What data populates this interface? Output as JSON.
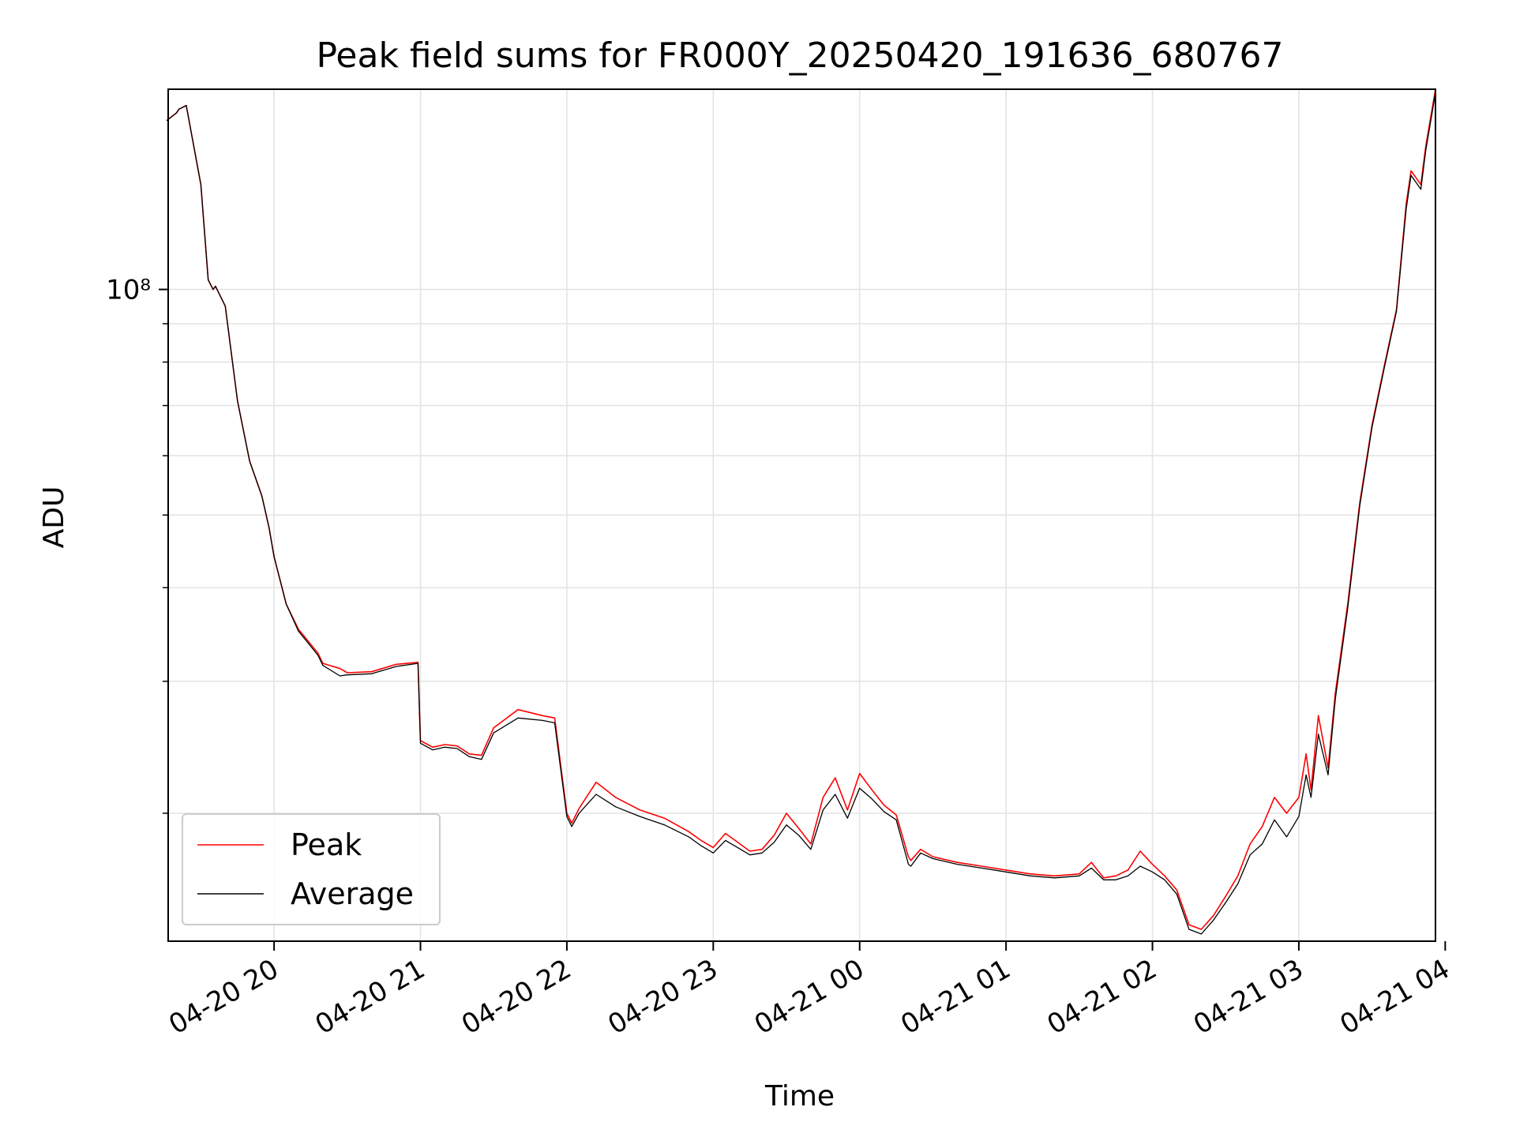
{
  "chart_data": {
    "type": "line",
    "title": "Peak field sums for FR000Y_20250420_191636_680767",
    "xlabel": "Time",
    "ylabel": "ADU",
    "y_scale": "log",
    "xlim": [
      "2025-04-20 19:16:36",
      "2025-04-21 03:56:00"
    ],
    "ylim": [
      13500000,
      185000000
    ],
    "x_tick_labels": [
      "04-20 20",
      "04-20 21",
      "04-20 22",
      "04-20 23",
      "04-21 00",
      "04-21 01",
      "04-21 02",
      "04-21 03",
      "04-21 04"
    ],
    "x_ticks": [
      "2025-04-20 20:00",
      "2025-04-20 21:00",
      "2025-04-20 22:00",
      "2025-04-20 23:00",
      "2025-04-21 00:00",
      "2025-04-21 01:00",
      "2025-04-21 02:00",
      "2025-04-21 03:00",
      "2025-04-21 04:00"
    ],
    "y_tick_label": "10⁸",
    "y_tick_value": 100000000,
    "grid": true,
    "legend_position": "lower-left",
    "series": [
      {
        "name": "Peak",
        "color": "#ff0000",
        "x": [
          "2025-04-20 19:16",
          "2025-04-20 19:20",
          "2025-04-20 19:21",
          "2025-04-20 19:24",
          "2025-04-20 19:30",
          "2025-04-20 19:33",
          "2025-04-20 19:35",
          "2025-04-20 19:36",
          "2025-04-20 19:40",
          "2025-04-20 19:45",
          "2025-04-20 19:50",
          "2025-04-20 19:55",
          "2025-04-20 19:58",
          "2025-04-20 20:00",
          "2025-04-20 20:05",
          "2025-04-20 20:10",
          "2025-04-20 20:18",
          "2025-04-20 20:20",
          "2025-04-20 20:27",
          "2025-04-20 20:30",
          "2025-04-20 20:40",
          "2025-04-20 20:50",
          "2025-04-20 20:59",
          "2025-04-20 21:00",
          "2025-04-20 21:05",
          "2025-04-20 21:10",
          "2025-04-20 21:15",
          "2025-04-20 21:20",
          "2025-04-20 21:25",
          "2025-04-20 21:30",
          "2025-04-20 21:40",
          "2025-04-20 21:50",
          "2025-04-20 21:55",
          "2025-04-20 22:00",
          "2025-04-20 22:02",
          "2025-04-20 22:05",
          "2025-04-20 22:12",
          "2025-04-20 22:20",
          "2025-04-20 22:30",
          "2025-04-20 22:40",
          "2025-04-20 22:50",
          "2025-04-20 22:55",
          "2025-04-20 23:00",
          "2025-04-20 23:05",
          "2025-04-20 23:10",
          "2025-04-20 23:15",
          "2025-04-20 23:20",
          "2025-04-20 23:25",
          "2025-04-20 23:30",
          "2025-04-20 23:35",
          "2025-04-20 23:40",
          "2025-04-20 23:45",
          "2025-04-20 23:50",
          "2025-04-20 23:55",
          "2025-04-21 00:00",
          "2025-04-21 00:05",
          "2025-04-21 00:10",
          "2025-04-21 00:15",
          "2025-04-21 00:20",
          "2025-04-21 00:21",
          "2025-04-21 00:25",
          "2025-04-21 00:30",
          "2025-04-21 00:40",
          "2025-04-21 00:50",
          "2025-04-21 01:00",
          "2025-04-21 01:10",
          "2025-04-21 01:20",
          "2025-04-21 01:30",
          "2025-04-21 01:35",
          "2025-04-21 01:40",
          "2025-04-21 01:45",
          "2025-04-21 01:50",
          "2025-04-21 01:55",
          "2025-04-21 02:00",
          "2025-04-21 02:05",
          "2025-04-21 02:10",
          "2025-04-21 02:15",
          "2025-04-21 02:20",
          "2025-04-21 02:25",
          "2025-04-21 02:30",
          "2025-04-21 02:35",
          "2025-04-21 02:40",
          "2025-04-21 02:45",
          "2025-04-21 02:50",
          "2025-04-21 02:55",
          "2025-04-21 03:00",
          "2025-04-21 03:03",
          "2025-04-21 03:05",
          "2025-04-21 03:08",
          "2025-04-21 03:12",
          "2025-04-21 03:15",
          "2025-04-21 03:20",
          "2025-04-21 03:25",
          "2025-04-21 03:30",
          "2025-04-21 03:35",
          "2025-04-21 03:40",
          "2025-04-21 03:44",
          "2025-04-21 03:46",
          "2025-04-21 03:50",
          "2025-04-21 03:52",
          "2025-04-21 03:56"
        ],
        "y": [
          168000000,
          172000000,
          174000000,
          176000000,
          138000000,
          103000000,
          100000000,
          101000000,
          95000000,
          71000000,
          59000000,
          53000000,
          48000000,
          44000000,
          38000000,
          35200000,
          32700000,
          31700000,
          31200000,
          30800000,
          30900000,
          31600000,
          31800000,
          25000000,
          24500000,
          24700000,
          24600000,
          24000000,
          23900000,
          26000000,
          27500000,
          27000000,
          26800000,
          20000000,
          19400000,
          20300000,
          22000000,
          21000000,
          20200000,
          19700000,
          18900000,
          18400000,
          18000000,
          18800000,
          18300000,
          17800000,
          17900000,
          18700000,
          20000000,
          19100000,
          18200000,
          21000000,
          22300000,
          20200000,
          22600000,
          21500000,
          20500000,
          19900000,
          17500000,
          17300000,
          17900000,
          17500000,
          17200000,
          17000000,
          16800000,
          16600000,
          16500000,
          16600000,
          17200000,
          16400000,
          16500000,
          16800000,
          17800000,
          17100000,
          16500000,
          15800000,
          14200000,
          14000000,
          14600000,
          15500000,
          16500000,
          18200000,
          19200000,
          21000000,
          20000000,
          21000000,
          24000000,
          21500000,
          27000000,
          23000000,
          29000000,
          38000000,
          52000000,
          66000000,
          79000000,
          94000000,
          130000000,
          144000000,
          138000000,
          155000000,
          185000000
        ]
      },
      {
        "name": "Average",
        "color": "#000000",
        "x": [
          "2025-04-20 19:16",
          "2025-04-20 19:20",
          "2025-04-20 19:21",
          "2025-04-20 19:24",
          "2025-04-20 19:30",
          "2025-04-20 19:33",
          "2025-04-20 19:35",
          "2025-04-20 19:36",
          "2025-04-20 19:40",
          "2025-04-20 19:45",
          "2025-04-20 19:50",
          "2025-04-20 19:55",
          "2025-04-20 19:58",
          "2025-04-20 20:00",
          "2025-04-20 20:05",
          "2025-04-20 20:10",
          "2025-04-20 20:18",
          "2025-04-20 20:20",
          "2025-04-20 20:27",
          "2025-04-20 20:30",
          "2025-04-20 20:40",
          "2025-04-20 20:50",
          "2025-04-20 20:59",
          "2025-04-20 21:00",
          "2025-04-20 21:05",
          "2025-04-20 21:10",
          "2025-04-20 21:15",
          "2025-04-20 21:20",
          "2025-04-20 21:25",
          "2025-04-20 21:30",
          "2025-04-20 21:40",
          "2025-04-20 21:50",
          "2025-04-20 21:55",
          "2025-04-20 22:00",
          "2025-04-20 22:02",
          "2025-04-20 22:05",
          "2025-04-20 22:12",
          "2025-04-20 22:20",
          "2025-04-20 22:30",
          "2025-04-20 22:40",
          "2025-04-20 22:50",
          "2025-04-20 22:55",
          "2025-04-20 23:00",
          "2025-04-20 23:05",
          "2025-04-20 23:10",
          "2025-04-20 23:15",
          "2025-04-20 23:20",
          "2025-04-20 23:25",
          "2025-04-20 23:30",
          "2025-04-20 23:35",
          "2025-04-20 23:40",
          "2025-04-20 23:45",
          "2025-04-20 23:50",
          "2025-04-20 23:55",
          "2025-04-21 00:00",
          "2025-04-21 00:05",
          "2025-04-21 00:10",
          "2025-04-21 00:15",
          "2025-04-21 00:20",
          "2025-04-21 00:21",
          "2025-04-21 00:25",
          "2025-04-21 00:30",
          "2025-04-21 00:40",
          "2025-04-21 00:50",
          "2025-04-21 01:00",
          "2025-04-21 01:10",
          "2025-04-21 01:20",
          "2025-04-21 01:30",
          "2025-04-21 01:35",
          "2025-04-21 01:40",
          "2025-04-21 01:45",
          "2025-04-21 01:50",
          "2025-04-21 01:55",
          "2025-04-21 02:00",
          "2025-04-21 02:05",
          "2025-04-21 02:10",
          "2025-04-21 02:15",
          "2025-04-21 02:20",
          "2025-04-21 02:25",
          "2025-04-21 02:30",
          "2025-04-21 02:35",
          "2025-04-21 02:40",
          "2025-04-21 02:45",
          "2025-04-21 02:50",
          "2025-04-21 02:55",
          "2025-04-21 03:00",
          "2025-04-21 03:03",
          "2025-04-21 03:05",
          "2025-04-21 03:08",
          "2025-04-21 03:12",
          "2025-04-21 03:15",
          "2025-04-21 03:20",
          "2025-04-21 03:25",
          "2025-04-21 03:30",
          "2025-04-21 03:35",
          "2025-04-21 03:40",
          "2025-04-21 03:44",
          "2025-04-21 03:46",
          "2025-04-21 03:50",
          "2025-04-21 03:52",
          "2025-04-21 03:56"
        ],
        "y": [
          168000000,
          172000000,
          174000000,
          176000000,
          138000000,
          103000000,
          100000000,
          101000000,
          95000000,
          71000000,
          59000000,
          53000000,
          48000000,
          44000000,
          38000000,
          35000000,
          32500000,
          31500000,
          30500000,
          30600000,
          30700000,
          31400000,
          31700000,
          24800000,
          24300000,
          24500000,
          24400000,
          23800000,
          23600000,
          25600000,
          26800000,
          26600000,
          26400000,
          19800000,
          19200000,
          20000000,
          21200000,
          20400000,
          19800000,
          19300000,
          18600000,
          18100000,
          17700000,
          18400000,
          18000000,
          17600000,
          17700000,
          18300000,
          19300000,
          18700000,
          17900000,
          20200000,
          21200000,
          19700000,
          21600000,
          20900000,
          20100000,
          19600000,
          17100000,
          17000000,
          17700000,
          17400000,
          17100000,
          16900000,
          16700000,
          16500000,
          16400000,
          16500000,
          16900000,
          16300000,
          16300000,
          16500000,
          17000000,
          16700000,
          16300000,
          15600000,
          14000000,
          13800000,
          14400000,
          15200000,
          16100000,
          17600000,
          18200000,
          19600000,
          18600000,
          19800000,
          22500000,
          21000000,
          25500000,
          22500000,
          28500000,
          37500000,
          51500000,
          65500000,
          78500000,
          93500000,
          128000000,
          142000000,
          136000000,
          153000000,
          183000000
        ]
      }
    ]
  }
}
